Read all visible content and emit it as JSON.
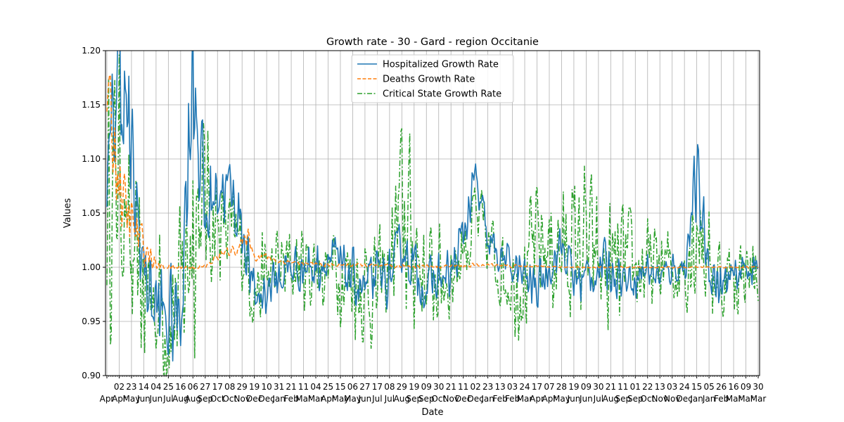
{
  "chart_data": {
    "type": "line",
    "title": "Growth rate - 30 - Gard - region Occitanie",
    "xlabel": "Date",
    "ylabel": "Values",
    "ylim": [
      0.9,
      1.2
    ],
    "y_ticks": [
      "0.90",
      "0.95",
      "1.00",
      "1.05",
      "1.10",
      "1.15",
      "1.20"
    ],
    "x_tick_labels": [
      {
        "day": "",
        "month": "Apr"
      },
      {
        "day": "02",
        "month": "Apr"
      },
      {
        "day": "23",
        "month": "May"
      },
      {
        "day": "14",
        "month": "Jun"
      },
      {
        "day": "04",
        "month": "Jun"
      },
      {
        "day": "25",
        "month": "Jul"
      },
      {
        "day": "16",
        "month": "Aug"
      },
      {
        "day": "06",
        "month": "Aug"
      },
      {
        "day": "27",
        "month": "Sep"
      },
      {
        "day": "17",
        "month": "Oct"
      },
      {
        "day": "08",
        "month": "Oct"
      },
      {
        "day": "29",
        "month": "Nov"
      },
      {
        "day": "19",
        "month": "Dec"
      },
      {
        "day": "10",
        "month": "Dec"
      },
      {
        "day": "31",
        "month": "Jan"
      },
      {
        "day": "21",
        "month": "Feb"
      },
      {
        "day": "11",
        "month": "Mar"
      },
      {
        "day": "04",
        "month": "Mar"
      },
      {
        "day": "25",
        "month": "Apr"
      },
      {
        "day": "15",
        "month": "May"
      },
      {
        "day": "06",
        "month": "May"
      },
      {
        "day": "27",
        "month": "Jun"
      },
      {
        "day": "17",
        "month": "Jul"
      },
      {
        "day": "08",
        "month": "Jul"
      },
      {
        "day": "29",
        "month": "Aug"
      },
      {
        "day": "19",
        "month": "Sep"
      },
      {
        "day": "09",
        "month": "Sep"
      },
      {
        "day": "30",
        "month": "Oct"
      },
      {
        "day": "21",
        "month": "Nov"
      },
      {
        "day": "11",
        "month": "Dec"
      },
      {
        "day": "02",
        "month": "Dec"
      },
      {
        "day": "23",
        "month": "Jan"
      },
      {
        "day": "13",
        "month": "Feb"
      },
      {
        "day": "03",
        "month": "Feb"
      },
      {
        "day": "24",
        "month": "Mar"
      },
      {
        "day": "17",
        "month": "Apr"
      },
      {
        "day": "07",
        "month": "Apr"
      },
      {
        "day": "28",
        "month": "May"
      },
      {
        "day": "19",
        "month": "Jun"
      },
      {
        "day": "09",
        "month": "Jun"
      },
      {
        "day": "30",
        "month": "Jul"
      },
      {
        "day": "21",
        "month": "Aug"
      },
      {
        "day": "11",
        "month": "Sep"
      },
      {
        "day": "01",
        "month": "Sep"
      },
      {
        "day": "22",
        "month": "Oct"
      },
      {
        "day": "13",
        "month": "Nov"
      },
      {
        "day": "03",
        "month": "Nov"
      },
      {
        "day": "24",
        "month": "Dec"
      },
      {
        "day": "15",
        "month": "Jan"
      },
      {
        "day": "05",
        "month": "Jan"
      },
      {
        "day": "26",
        "month": "Feb"
      },
      {
        "day": "16",
        "month": "Mar"
      },
      {
        "day": "09",
        "month": "Mar"
      },
      {
        "day": "30",
        "month": "Mar"
      }
    ],
    "grid": true,
    "legend_position": "top-center",
    "series": [
      {
        "name": "Hospitalized Growth Rate",
        "color": "#1f77b4",
        "style": "solid",
        "anchors": [
          [
            0,
            1.06
          ],
          [
            1,
            1.2
          ],
          [
            2,
            1.09
          ],
          [
            3,
            1.0
          ],
          [
            4,
            0.96
          ],
          [
            5,
            0.95
          ],
          [
            6,
            0.96
          ],
          [
            7,
            1.2
          ],
          [
            8,
            1.04
          ],
          [
            9,
            1.08
          ],
          [
            10,
            1.07
          ],
          [
            11,
            1.04
          ],
          [
            12,
            0.97
          ],
          [
            13,
            0.98
          ],
          [
            14,
            0.99
          ],
          [
            15,
            1.0
          ],
          [
            16,
            1.0
          ],
          [
            17,
            1.0
          ],
          [
            18,
            1.01
          ],
          [
            19,
            1.0
          ],
          [
            20,
            0.99
          ],
          [
            21,
            0.98
          ],
          [
            22,
            0.99
          ],
          [
            23,
            0.99
          ],
          [
            24,
            1.02
          ],
          [
            25,
            1.0
          ],
          [
            26,
            0.98
          ],
          [
            27,
            0.99
          ],
          [
            28,
            0.99
          ],
          [
            29,
            1.03
          ],
          [
            30,
            1.08
          ],
          [
            31,
            1.02
          ],
          [
            32,
            1.01
          ],
          [
            33,
            1.0
          ],
          [
            34,
            0.99
          ],
          [
            35,
            0.98
          ],
          [
            36,
            1.0
          ],
          [
            37,
            1.02
          ],
          [
            38,
            0.99
          ],
          [
            39,
            0.99
          ],
          [
            40,
            1.0
          ],
          [
            41,
            1.0
          ],
          [
            42,
            0.99
          ],
          [
            43,
            0.99
          ],
          [
            44,
            1.0
          ],
          [
            45,
            0.99
          ],
          [
            46,
            1.0
          ],
          [
            47,
            1.0
          ],
          [
            48,
            1.08
          ],
          [
            49,
            1.0
          ],
          [
            50,
            0.98
          ],
          [
            51,
            0.99
          ],
          [
            52,
            1.0
          ],
          [
            53,
            1.0
          ]
        ],
        "amplitude": [
          0.06,
          0.1,
          0.08,
          0.05,
          0.06,
          0.06,
          0.06,
          0.12,
          0.06,
          0.05,
          0.04,
          0.04,
          0.03,
          0.03,
          0.03,
          0.03,
          0.03,
          0.03,
          0.03,
          0.03,
          0.03,
          0.03,
          0.03,
          0.03,
          0.03,
          0.03,
          0.03,
          0.03,
          0.03,
          0.03,
          0.03,
          0.03,
          0.02,
          0.02,
          0.03,
          0.03,
          0.02,
          0.03,
          0.03,
          0.03,
          0.03,
          0.03,
          0.02,
          0.02,
          0.02,
          0.02,
          0.02,
          0.02,
          0.05,
          0.03,
          0.03,
          0.02,
          0.02,
          0.02
        ]
      },
      {
        "name": "Deaths Growth Rate",
        "color": "#ff7f0e",
        "style": "dashed",
        "anchors": [
          [
            0,
            1.16
          ],
          [
            0.5,
            1.12
          ],
          [
            1,
            1.08
          ],
          [
            1.5,
            1.05
          ],
          [
            2,
            1.04
          ],
          [
            2.5,
            1.03
          ],
          [
            3,
            1.02
          ],
          [
            3.5,
            1.01
          ],
          [
            4,
            1.0
          ],
          [
            5,
            1.0
          ],
          [
            6,
            1.0
          ],
          [
            7,
            1.0
          ],
          [
            8,
            1.0
          ],
          [
            9,
            1.01
          ],
          [
            10,
            1.015
          ],
          [
            11,
            1.02
          ],
          [
            11.5,
            1.03
          ],
          [
            12,
            1.01
          ],
          [
            13,
            1.01
          ],
          [
            14,
            1.005
          ],
          [
            15,
            1.005
          ],
          [
            16,
            1.003
          ],
          [
            17,
            1.003
          ],
          [
            18,
            1.002
          ],
          [
            19,
            1.002
          ],
          [
            20,
            1.002
          ],
          [
            21,
            1.002
          ],
          [
            22,
            1.001
          ],
          [
            23,
            1.001
          ],
          [
            24,
            1.001
          ],
          [
            25,
            1.001
          ],
          [
            26,
            1.001
          ],
          [
            27,
            1.001
          ],
          [
            28,
            1.001
          ],
          [
            29,
            1.001
          ],
          [
            30,
            1.002
          ],
          [
            31,
            1.002
          ],
          [
            32,
            1.002
          ],
          [
            33,
            1.001
          ],
          [
            34,
            1.001
          ],
          [
            35,
            1.001
          ],
          [
            36,
            1.001
          ],
          [
            37,
            1.0
          ],
          [
            38,
            1.0
          ],
          [
            39,
            1.0
          ],
          [
            40,
            1.0
          ],
          [
            41,
            1.0
          ],
          [
            42,
            1.0
          ],
          [
            43,
            1.0
          ],
          [
            44,
            1.0
          ],
          [
            45,
            1.0
          ],
          [
            46,
            1.0
          ],
          [
            47,
            1.0
          ],
          [
            48,
            1.0
          ],
          [
            49,
            1.0
          ],
          [
            50,
            1.0
          ],
          [
            51,
            1.0
          ],
          [
            52,
            1.0
          ],
          [
            53,
            1.0
          ]
        ],
        "amplitude": [
          0.05,
          0.04,
          0.03,
          0.02,
          0.01,
          0.003,
          0.003,
          0.003,
          0.003,
          0.005,
          0.005,
          0.01,
          0.005,
          0.004,
          0.003,
          0.003,
          0.002,
          0.002,
          0.002,
          0.002,
          0.002,
          0.002,
          0.002,
          0.002,
          0.002,
          0.002,
          0.002,
          0.002,
          0.002,
          0.002,
          0.002,
          0.002,
          0.002,
          0.002,
          0.001,
          0.001,
          0.001,
          0.001,
          0.001,
          0.001,
          0.001,
          0.001,
          0.001,
          0.001,
          0.001,
          0.001,
          0.001,
          0.001,
          0.001,
          0.001,
          0.001,
          0.001,
          0.001,
          0.001
        ]
      },
      {
        "name": "Critical State Growth Rate",
        "color": "#2ca02c",
        "style": "dashdot",
        "anchors": [
          [
            0,
            1.05
          ],
          [
            1,
            1.1
          ],
          [
            2,
            0.99
          ],
          [
            3,
            0.98
          ],
          [
            4,
            0.97
          ],
          [
            5,
            0.96
          ],
          [
            6,
            0.97
          ],
          [
            7,
            1.05
          ],
          [
            8,
            1.06
          ],
          [
            9,
            1.04
          ],
          [
            10,
            1.03
          ],
          [
            11,
            1.02
          ],
          [
            12,
            0.98
          ],
          [
            13,
            0.99
          ],
          [
            14,
            1.0
          ],
          [
            15,
            1.0
          ],
          [
            16,
            1.0
          ],
          [
            17,
            1.0
          ],
          [
            18,
            1.0
          ],
          [
            19,
            1.0
          ],
          [
            20,
            0.99
          ],
          [
            21,
            0.98
          ],
          [
            22,
            0.98
          ],
          [
            23,
            1.0
          ],
          [
            24,
            1.05
          ],
          [
            25,
            1.02
          ],
          [
            26,
            0.99
          ],
          [
            27,
            0.99
          ],
          [
            28,
            0.99
          ],
          [
            29,
            1.02
          ],
          [
            30,
            1.04
          ],
          [
            31,
            1.02
          ],
          [
            32,
            1.0
          ],
          [
            33,
            0.99
          ],
          [
            34,
            0.99
          ],
          [
            35,
            1.02
          ],
          [
            36,
            1.02
          ],
          [
            37,
            1.01
          ],
          [
            38,
            1.02
          ],
          [
            39,
            1.02
          ],
          [
            40,
            1.0
          ],
          [
            41,
            0.99
          ],
          [
            42,
            1.0
          ],
          [
            43,
            1.0
          ],
          [
            44,
            1.0
          ],
          [
            45,
            1.0
          ],
          [
            46,
            1.0
          ],
          [
            47,
            1.0
          ],
          [
            48,
            1.05
          ],
          [
            49,
            1.0
          ],
          [
            50,
            0.99
          ],
          [
            51,
            0.99
          ],
          [
            52,
            1.0
          ],
          [
            53,
            0.99
          ]
        ],
        "amplitude": [
          0.15,
          0.12,
          0.1,
          0.1,
          0.1,
          0.1,
          0.1,
          0.15,
          0.1,
          0.06,
          0.06,
          0.05,
          0.05,
          0.05,
          0.05,
          0.05,
          0.05,
          0.05,
          0.05,
          0.06,
          0.06,
          0.07,
          0.06,
          0.06,
          0.12,
          0.1,
          0.06,
          0.06,
          0.05,
          0.05,
          0.06,
          0.05,
          0.05,
          0.06,
          0.07,
          0.08,
          0.08,
          0.07,
          0.08,
          0.09,
          0.08,
          0.08,
          0.07,
          0.06,
          0.05,
          0.05,
          0.05,
          0.06,
          0.1,
          0.06,
          0.06,
          0.05,
          0.04,
          0.04
        ]
      }
    ]
  }
}
